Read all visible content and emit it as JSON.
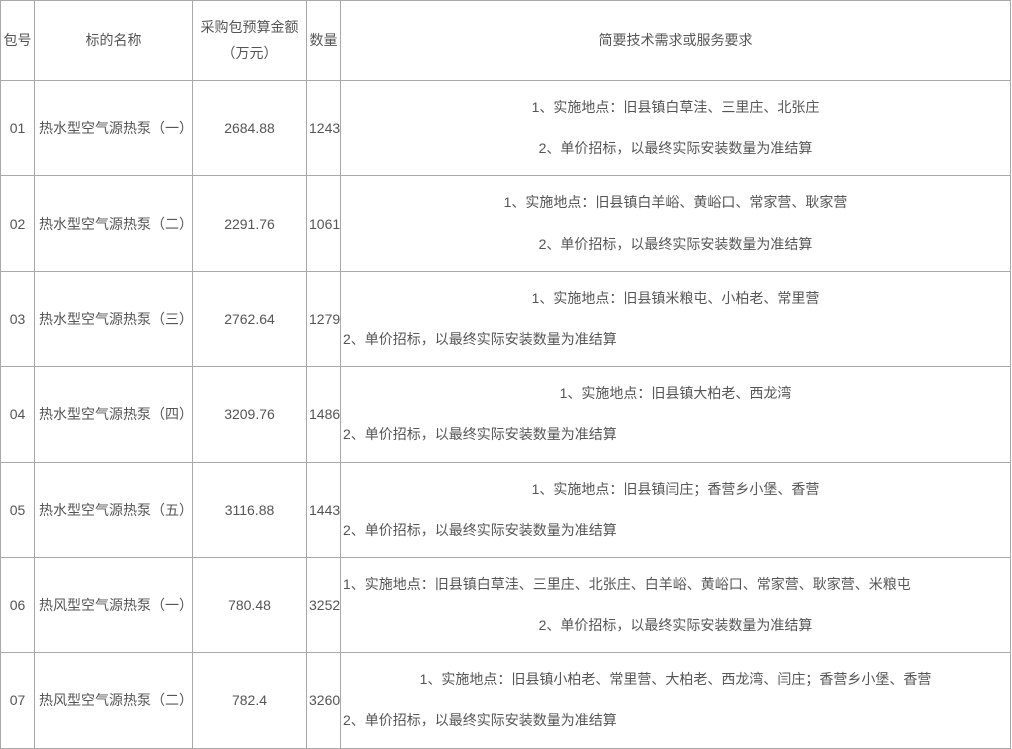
{
  "columns": {
    "pkg": "包号",
    "name": "标的名称",
    "budget_l1": "采购包预算金额",
    "budget_l2": "（万元）",
    "qty": "数量",
    "req": "简要技术需求或服务要求"
  },
  "col_widths": {
    "pkg": 34,
    "name": 158,
    "budget": 114,
    "qty": 34,
    "req": 670
  },
  "colors": {
    "border": "#a8a8a8",
    "text": "#555555",
    "background": "#ffffff"
  },
  "fontsize": 14,
  "rows": [
    {
      "pkg": "01",
      "name": "热水型空气源热泵（一）",
      "budget": "2684.88",
      "qty": "1243",
      "req_line1": "1、实施地点：旧县镇白草洼、三里庄、北张庄",
      "req_line2": "2、单价招标，以最终实际安装数量为准结算",
      "line1_align": "center",
      "line2_align": "center"
    },
    {
      "pkg": "02",
      "name": "热水型空气源热泵（二）",
      "budget": "2291.76",
      "qty": "1061",
      "req_line1": "1、实施地点：旧县镇白羊峪、黄峪口、常家营、耿家营",
      "req_line2": "2、单价招标，以最终实际安装数量为准结算",
      "line1_align": "center",
      "line2_align": "center"
    },
    {
      "pkg": "03",
      "name": "热水型空气源热泵（三）",
      "budget": "2762.64",
      "qty": "1279",
      "req_line1": "1、实施地点：旧县镇米粮屯、小柏老、常里营",
      "req_line2": "2、单价招标，以最终实际安装数量为准结算",
      "line1_align": "center",
      "line2_align": "left"
    },
    {
      "pkg": "04",
      "name": "热水型空气源热泵（四）",
      "budget": "3209.76",
      "qty": "1486",
      "req_line1": "1、实施地点：旧县镇大柏老、西龙湾",
      "req_line2": "2、单价招标，以最终实际安装数量为准结算",
      "line1_align": "center",
      "line2_align": "left"
    },
    {
      "pkg": "05",
      "name": "热水型空气源热泵（五）",
      "budget": "3116.88",
      "qty": "1443",
      "req_line1": "1、实施地点：旧县镇闫庄；香营乡小堡、香营",
      "req_line2": "2、单价招标，以最终实际安装数量为准结算",
      "line1_align": "center",
      "line2_align": "left"
    },
    {
      "pkg": "06",
      "name": "热风型空气源热泵（一）",
      "budget": "780.48",
      "qty": "3252",
      "req_line1": "1、实施地点：旧县镇白草洼、三里庄、北张庄、白羊峪、黄峪口、常家营、耿家营、米粮屯",
      "req_line2": "2、单价招标，以最终实际安装数量为准结算",
      "line1_align": "left",
      "line2_align": "center"
    },
    {
      "pkg": "07",
      "name": "热风型空气源热泵（二）",
      "budget": "782.4",
      "qty": "3260",
      "req_line1": "1、实施地点：旧县镇小柏老、常里营、大柏老、西龙湾、闫庄；香营乡小堡、香营",
      "req_line2": "2、单价招标，以最终实际安装数量为准结算",
      "line1_align": "center",
      "line2_align": "left"
    }
  ]
}
